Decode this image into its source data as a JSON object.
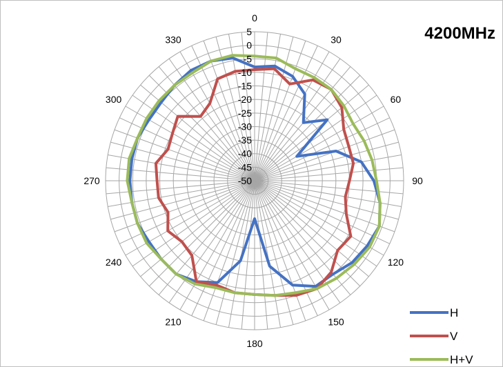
{
  "chart_data": {
    "type": "radar",
    "title": "4200MHz",
    "angle_ticks": [
      "0",
      "30",
      "60",
      "90",
      "120",
      "150",
      "180",
      "210",
      "240",
      "270",
      "300",
      "330"
    ],
    "radial_ticks": [
      "5",
      "0",
      "-5",
      "-10",
      "-15",
      "-20",
      "-25",
      "-30",
      "-35",
      "-40",
      "-45",
      "-50"
    ],
    "rlim": [
      -50,
      5
    ],
    "grid": true,
    "legend_position": "bottom-right",
    "angles_deg": [
      0,
      10,
      20,
      30,
      40,
      50,
      60,
      70,
      80,
      90,
      100,
      110,
      120,
      130,
      140,
      150,
      160,
      170,
      180,
      190,
      200,
      210,
      220,
      230,
      240,
      250,
      260,
      270,
      280,
      290,
      300,
      310,
      320,
      330,
      340,
      350
    ],
    "series": [
      {
        "name": "H",
        "color": "#4472C4",
        "values": [
          -8,
          -7,
          -9,
          -13,
          -22,
          -15,
          -32,
          -18,
          -10,
          -6,
          -3,
          -1,
          -2,
          -3,
          -5,
          -5,
          -9,
          -18,
          -36,
          -20,
          -10,
          -7,
          -5,
          -5,
          -5,
          -4,
          -4,
          -4,
          -4,
          -4,
          -5,
          -5,
          -4,
          -3,
          -3,
          -4
        ]
      },
      {
        "name": "V",
        "color": "#C0504D",
        "values": [
          -9,
          -8,
          -12,
          -7,
          -6,
          -8,
          -12,
          -13,
          -13,
          -15,
          -16,
          -14,
          -9,
          -10,
          -6,
          -4,
          -5,
          -7,
          -8,
          -8,
          -9,
          -7,
          -14,
          -15,
          -13,
          -16,
          -14,
          -14,
          -13,
          -16,
          -15,
          -13,
          -19,
          -17,
          -10,
          -9
        ]
      },
      {
        "name": "H+V",
        "color": "#9BBB59",
        "values": [
          -4,
          -4,
          -6,
          -6,
          -6,
          -7,
          -8,
          -7,
          -6,
          -5,
          -3,
          -1,
          -1,
          -2,
          -3,
          -4,
          -6,
          -7,
          -8,
          -8,
          -8,
          -6,
          -5,
          -5,
          -4,
          -4,
          -4,
          -3,
          -3,
          -4,
          -4,
          -4,
          -4,
          -4,
          -3,
          -3
        ]
      }
    ]
  }
}
